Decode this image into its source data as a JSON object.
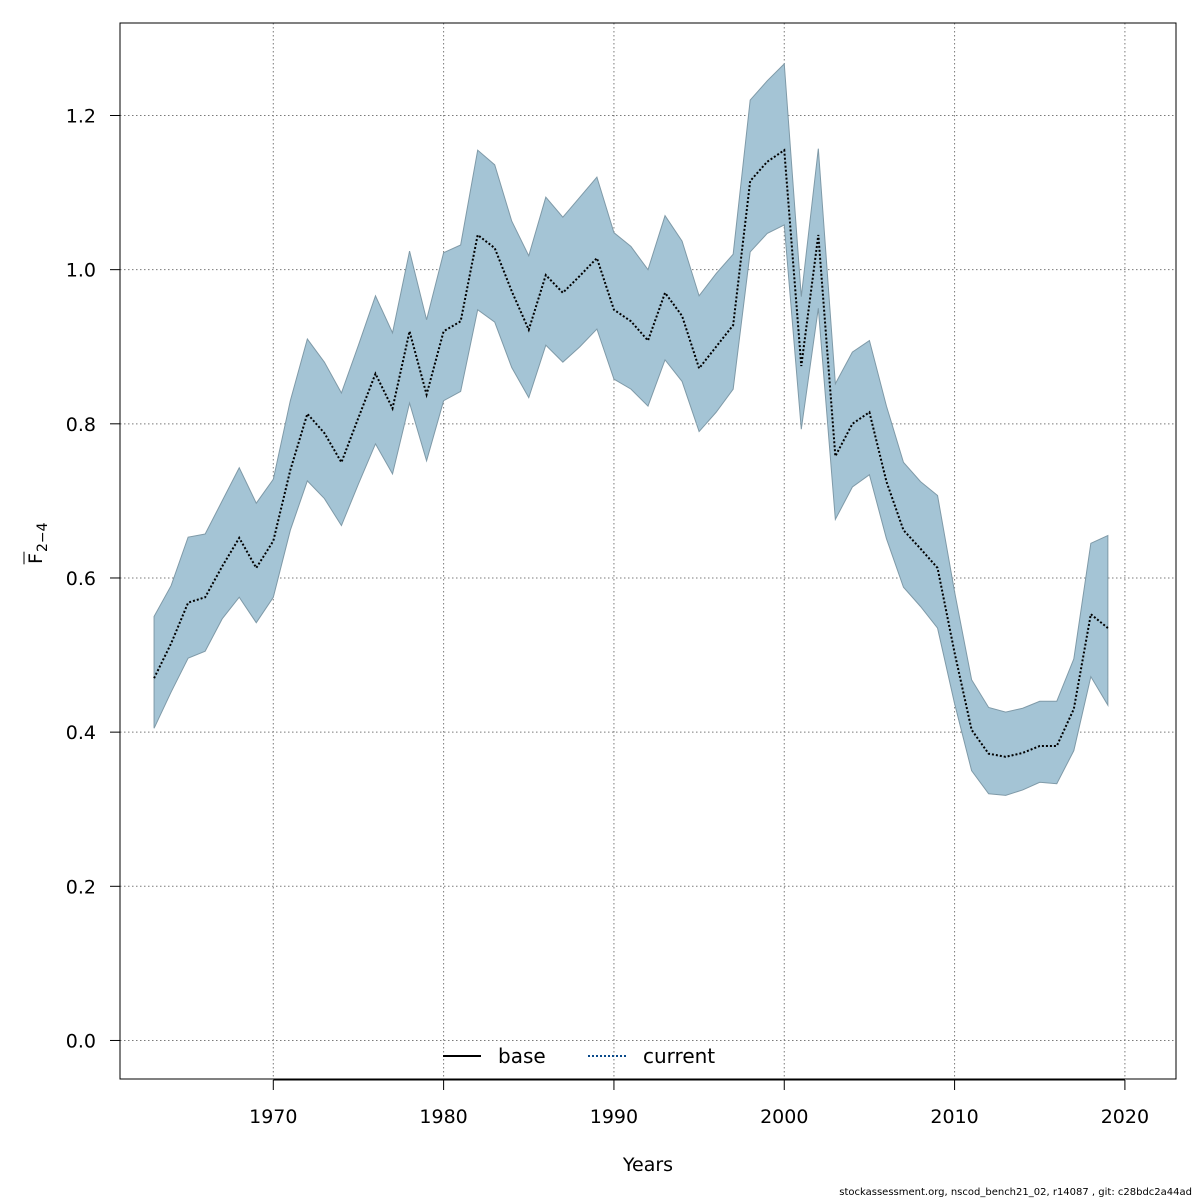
{
  "chart_data": {
    "type": "line",
    "xlabel": "Years",
    "ylabel": "F",
    "ylabel_bar": "—",
    "ylabel_sub": "2−4",
    "xlim": [
      1961,
      2023
    ],
    "ylim": [
      -0.05,
      1.32
    ],
    "xticks": [
      1970,
      1980,
      1990,
      2000,
      2010,
      2020
    ],
    "yticks": [
      0.0,
      0.2,
      0.4,
      0.6,
      0.8,
      1.0,
      1.2
    ],
    "ytick_labels": [
      "0.0",
      "0.2",
      "0.4",
      "0.6",
      "0.8",
      "1.0",
      "1.2"
    ],
    "grid": true,
    "legend": {
      "placement": "bottom-center",
      "items": [
        {
          "label": "base",
          "style": "solid",
          "color": "#000000"
        },
        {
          "label": "current",
          "style": "dotted",
          "color": "#0a4a8a"
        }
      ]
    },
    "band_color": "#a4c4d5",
    "band_edge_color": "#7f9aa8",
    "x": [
      1963,
      1964,
      1965,
      1966,
      1967,
      1968,
      1969,
      1970,
      1971,
      1972,
      1973,
      1974,
      1975,
      1976,
      1977,
      1978,
      1979,
      1980,
      1981,
      1982,
      1983,
      1984,
      1985,
      1986,
      1987,
      1988,
      1989,
      1990,
      1991,
      1992,
      1993,
      1994,
      1995,
      1996,
      1997,
      1998,
      1999,
      2000,
      2001,
      2002,
      2003,
      2004,
      2005,
      2006,
      2007,
      2008,
      2009,
      2010,
      2011,
      2012,
      2013,
      2014,
      2015,
      2016,
      2017,
      2018,
      2019
    ],
    "series": [
      {
        "name": "current",
        "role": "estimate",
        "values": [
          0.47,
          0.515,
          0.568,
          0.575,
          0.615,
          0.652,
          0.613,
          0.648,
          0.74,
          0.813,
          0.788,
          0.75,
          0.808,
          0.865,
          0.82,
          0.92,
          0.838,
          0.92,
          0.933,
          1.045,
          1.028,
          0.972,
          0.922,
          0.993,
          0.97,
          0.992,
          1.015,
          0.948,
          0.933,
          0.908,
          0.97,
          0.94,
          0.872,
          0.9,
          0.928,
          1.115,
          1.14,
          1.155,
          0.875,
          1.045,
          0.758,
          0.8,
          0.815,
          0.725,
          0.662,
          0.638,
          0.613,
          0.503,
          0.403,
          0.372,
          0.368,
          0.373,
          0.382,
          0.382,
          0.43,
          0.553,
          0.535
        ]
      },
      {
        "name": "upper",
        "role": "ci-upper",
        "values": [
          0.55,
          0.59,
          0.653,
          0.657,
          0.7,
          0.743,
          0.697,
          0.728,
          0.83,
          0.91,
          0.88,
          0.84,
          0.902,
          0.966,
          0.918,
          1.024,
          0.935,
          1.022,
          1.032,
          1.155,
          1.136,
          1.063,
          1.018,
          1.094,
          1.068,
          1.094,
          1.12,
          1.048,
          1.03,
          1.0,
          1.07,
          1.037,
          0.966,
          0.995,
          1.02,
          1.22,
          1.245,
          1.267,
          0.965,
          1.157,
          0.852,
          0.893,
          0.908,
          0.823,
          0.75,
          0.725,
          0.707,
          0.582,
          0.468,
          0.432,
          0.426,
          0.431,
          0.44,
          0.44,
          0.495,
          0.645,
          0.655
        ]
      },
      {
        "name": "lower",
        "role": "ci-lower",
        "values": [
          0.405,
          0.452,
          0.496,
          0.505,
          0.547,
          0.575,
          0.542,
          0.575,
          0.662,
          0.726,
          0.703,
          0.668,
          0.722,
          0.774,
          0.735,
          0.827,
          0.752,
          0.83,
          0.842,
          0.948,
          0.932,
          0.873,
          0.834,
          0.902,
          0.88,
          0.9,
          0.923,
          0.858,
          0.845,
          0.823,
          0.883,
          0.855,
          0.79,
          0.815,
          0.845,
          1.023,
          1.047,
          1.058,
          0.793,
          0.95,
          0.676,
          0.718,
          0.734,
          0.651,
          0.588,
          0.563,
          0.535,
          0.437,
          0.35,
          0.32,
          0.318,
          0.325,
          0.335,
          0.333,
          0.376,
          0.472,
          0.435
        ]
      }
    ]
  },
  "footer": {
    "credit": "stockassessment.org, nscod_bench21_02, r14087 , git: c28bdc2a44ad"
  }
}
